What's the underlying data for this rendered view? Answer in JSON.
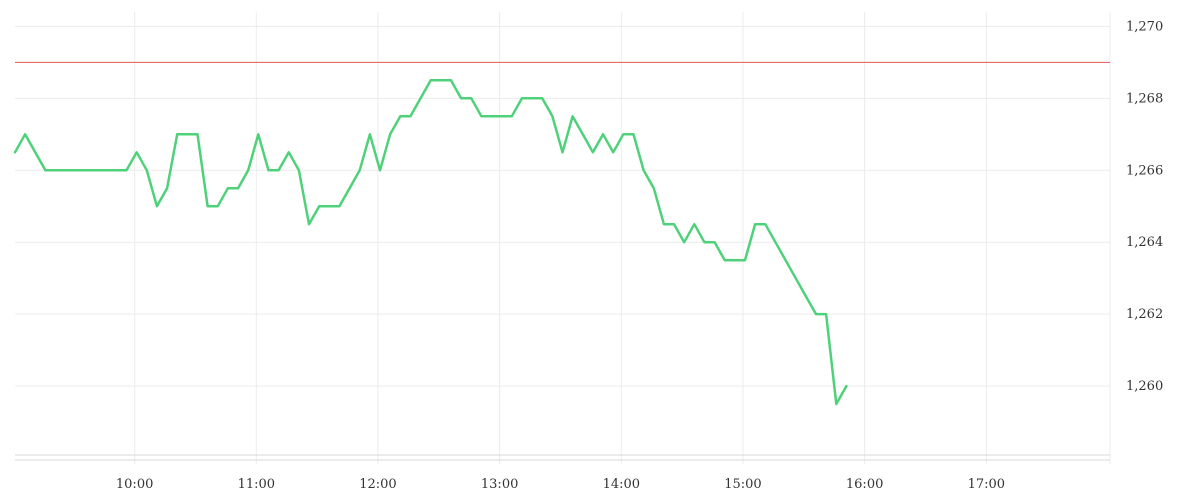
{
  "chart_data": {
    "type": "line",
    "title": "",
    "xlabel": "",
    "ylabel": "",
    "x_ticks": [
      "10:00",
      "11:00",
      "12:00",
      "13:00",
      "14:00",
      "15:00",
      "16:00",
      "17:00"
    ],
    "y_ticks": [
      "1,260",
      "1,262",
      "1,264",
      "1,266",
      "1,268",
      "1,270"
    ],
    "xlim": [
      "09:01",
      "18:01"
    ],
    "ylim": [
      1258,
      1270.4
    ],
    "grid": true,
    "reference_line": {
      "value": 1269,
      "color": "#e05a5a"
    },
    "series": [
      {
        "color": "#4fd17a",
        "x": [
          "09:01",
          "09:06",
          "09:16",
          "09:21",
          "09:26",
          "09:31",
          "09:36",
          "09:41",
          "09:46",
          "09:51",
          "09:56",
          "10:01",
          "10:06",
          "10:11",
          "10:16",
          "10:21",
          "10:26",
          "10:31",
          "10:36",
          "10:41",
          "10:46",
          "10:51",
          "10:56",
          "11:01",
          "11:06",
          "11:11",
          "11:16",
          "11:21",
          "11:26",
          "11:31",
          "11:36",
          "11:41",
          "11:46",
          "11:51",
          "11:56",
          "12:01",
          "12:06",
          "12:11",
          "12:16",
          "12:21",
          "12:26",
          "12:31",
          "12:36",
          "12:41",
          "12:46",
          "12:51",
          "12:56",
          "13:01",
          "13:06",
          "13:11",
          "13:16",
          "13:21",
          "13:26",
          "13:31",
          "13:36",
          "13:41",
          "13:46",
          "13:51",
          "13:56",
          "14:01",
          "14:06",
          "14:11",
          "14:16",
          "14:21",
          "14:26",
          "14:31",
          "14:36",
          "14:41",
          "14:46",
          "14:51",
          "14:56",
          "15:01",
          "15:06",
          "15:11",
          "15:16",
          "15:21",
          "15:26",
          "15:31",
          "15:36",
          "15:41",
          "15:46",
          "15:51"
        ],
        "values": [
          1266.5,
          1267,
          1266,
          1266,
          1266,
          1266,
          1266,
          1266,
          1266,
          1266,
          1266,
          1266.5,
          1266,
          1265,
          1265.5,
          1267,
          1267,
          1267,
          1265,
          1265,
          1265.5,
          1265.5,
          1266,
          1267,
          1266,
          1266,
          1266.5,
          1266,
          1264.5,
          1265,
          1265,
          1265,
          1265.5,
          1266,
          1267,
          1266,
          1267,
          1267.5,
          1267.5,
          1268,
          1268.5,
          1268.5,
          1268.5,
          1268,
          1268,
          1267.5,
          1267.5,
          1267.5,
          1267.5,
          1268,
          1268,
          1268,
          1267.5,
          1266.5,
          1267.5,
          1267,
          1266.5,
          1267,
          1266.5,
          1267,
          1267,
          1266,
          1265.5,
          1264.5,
          1264.5,
          1264,
          1264.5,
          1264,
          1264,
          1263.5,
          1263.5,
          1263.5,
          1264.5,
          1264.5,
          1264,
          1263.5,
          1263,
          1262.5,
          1262,
          1262,
          1259.5,
          1260
        ]
      }
    ]
  }
}
